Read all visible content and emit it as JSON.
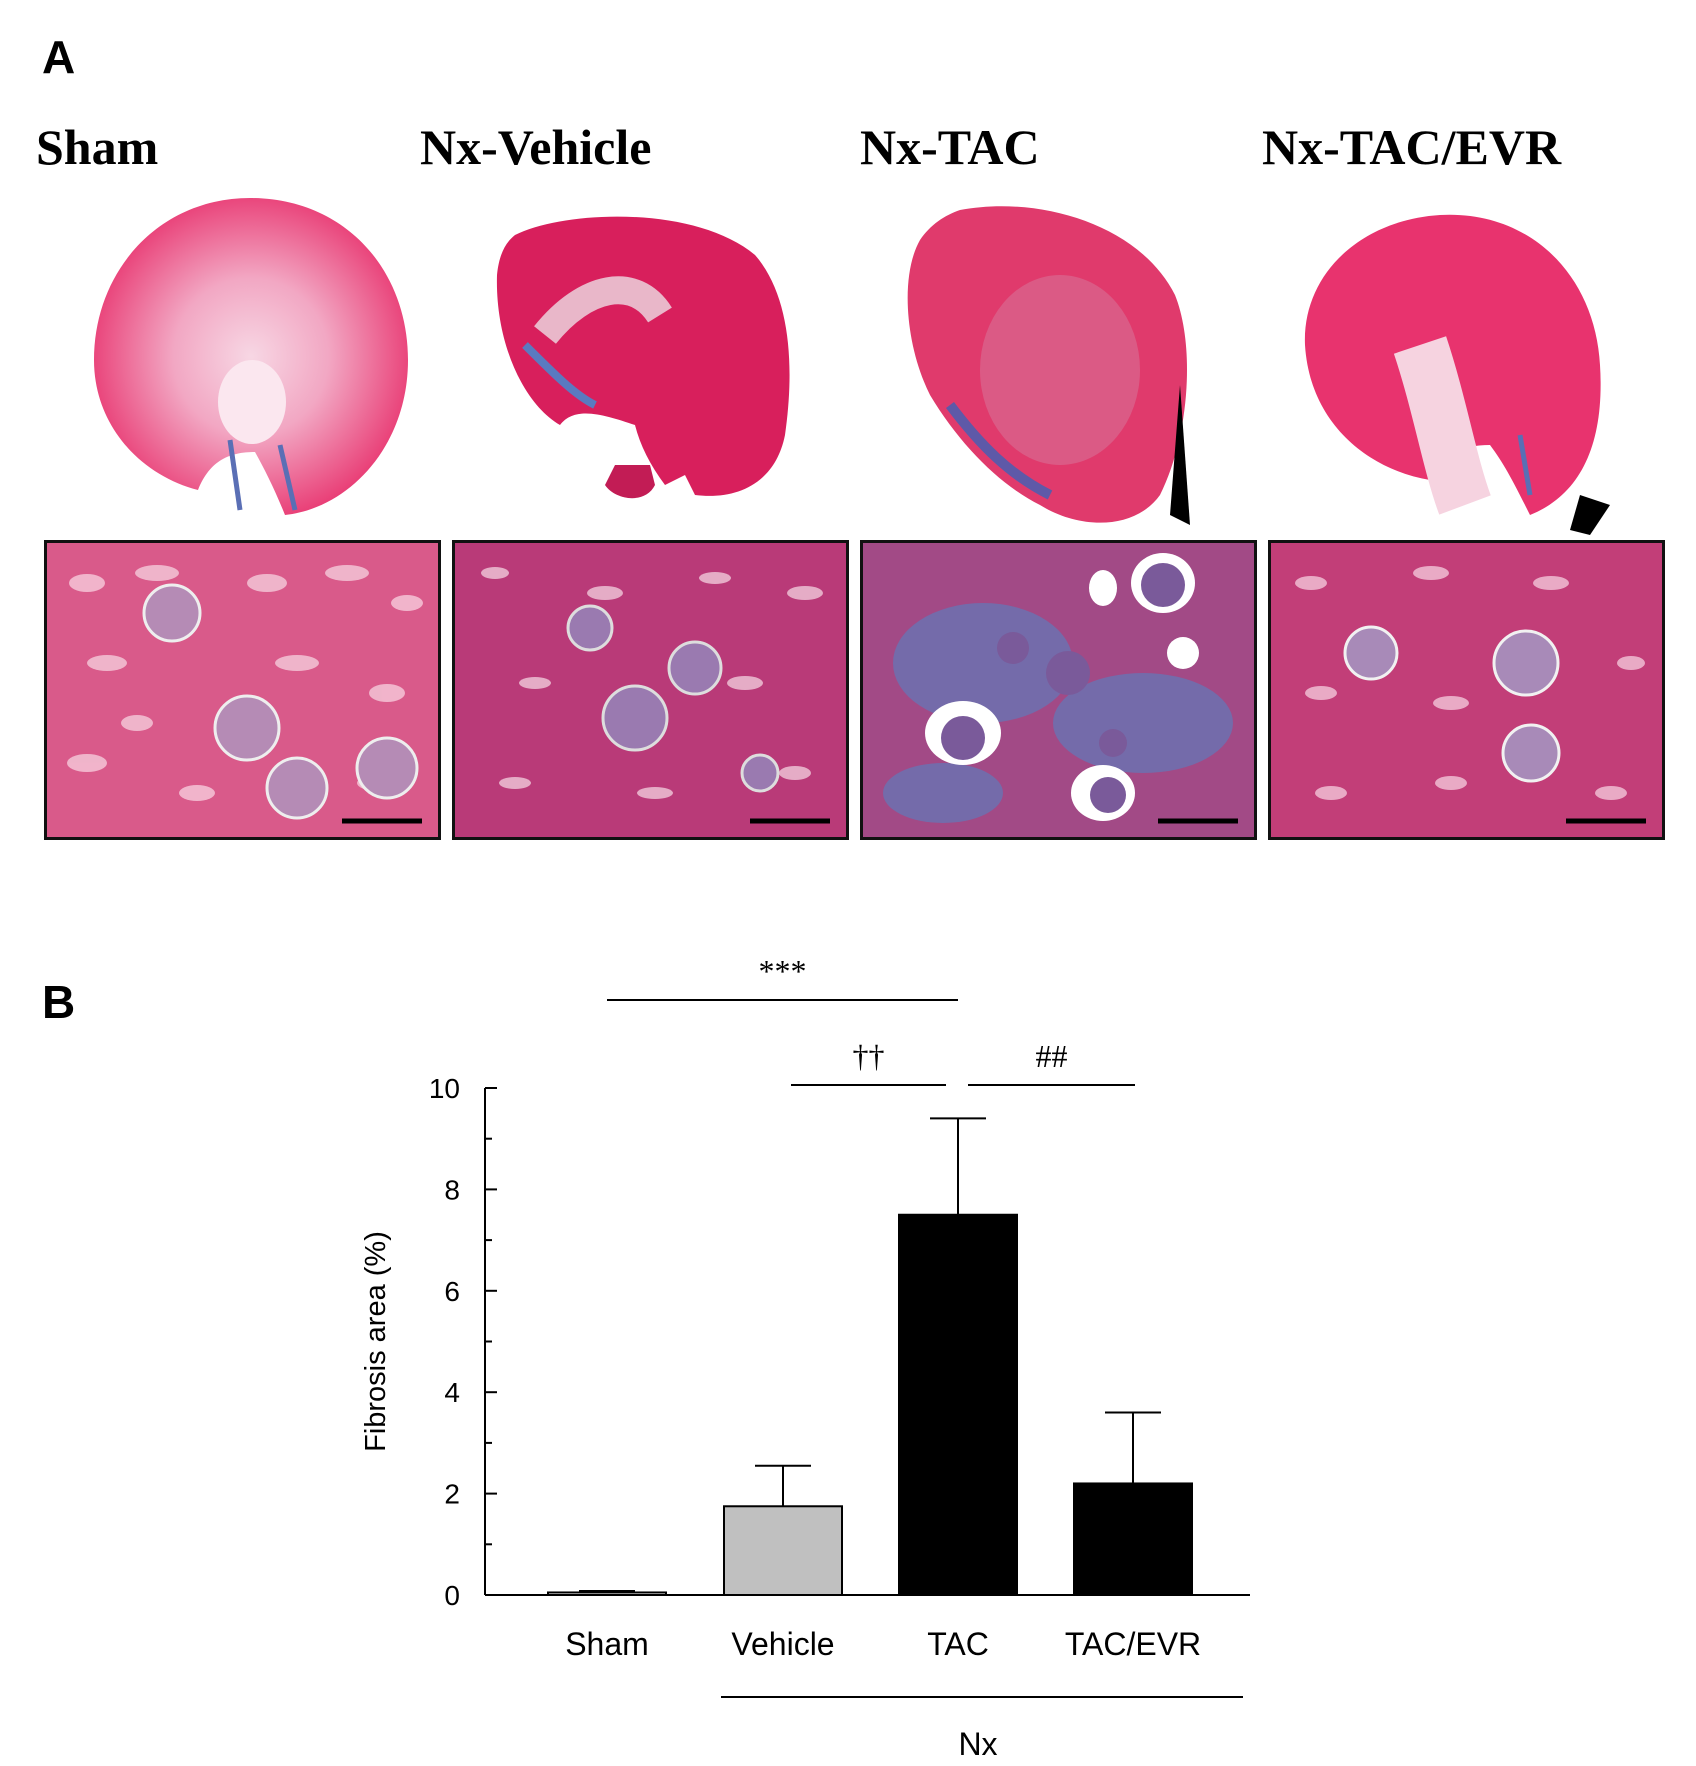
{
  "panel_a": {
    "label": "A",
    "groups": [
      {
        "title": "Sham"
      },
      {
        "title": "Nx-Vehicle"
      },
      {
        "title": "Nx-TAC"
      },
      {
        "title": "Nx-TAC/EVR"
      }
    ]
  },
  "panel_b": {
    "label": "B"
  },
  "chart_data": {
    "type": "bar",
    "categories": [
      "Sham",
      "Vehicle",
      "TAC",
      "TAC/EVR"
    ],
    "values": [
      0.05,
      1.75,
      7.5,
      2.2
    ],
    "errors": [
      0.03,
      0.8,
      1.9,
      1.4
    ],
    "bar_colors": [
      "#ffffff",
      "#c0c0c0",
      "#000000",
      "#000000"
    ],
    "ylabel": "Fibrosis area (%)",
    "ylim": [
      0,
      10
    ],
    "yticks": [
      "0",
      "2",
      "4",
      "6",
      "8",
      "10"
    ],
    "group_label": "Nx",
    "significance": [
      {
        "from": 0,
        "to": 2,
        "label": "***"
      },
      {
        "from": 1,
        "to": 2,
        "label": "††"
      },
      {
        "from": 2,
        "to": 3,
        "label": "##"
      }
    ]
  }
}
